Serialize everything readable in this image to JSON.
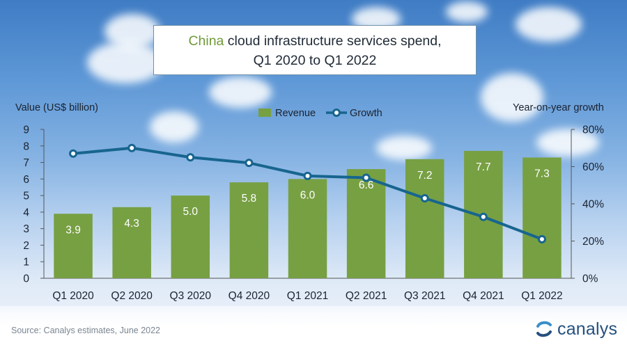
{
  "title": {
    "highlight": "China",
    "line1_rest": " cloud infrastructure services spend,",
    "line2": "Q1 2020 to Q1 2022"
  },
  "axis_titles": {
    "left": "Value (US$ billion)",
    "right": "Year-on-year growth"
  },
  "legend": {
    "revenue": "Revenue",
    "growth": "Growth"
  },
  "source": "Source: Canalys estimates, June 2022",
  "brand": "canalys",
  "colors": {
    "bar": "#77a043",
    "line": "#17658f",
    "marker_fill": "#ffffff"
  },
  "chart_data": {
    "type": "bar",
    "title": "China cloud infrastructure services spend, Q1 2020 to Q1 2022",
    "categories": [
      "Q1 2020",
      "Q2 2020",
      "Q3 2020",
      "Q4 2020",
      "Q1 2021",
      "Q2 2021",
      "Q3 2021",
      "Q4 2021",
      "Q1 2022"
    ],
    "series": [
      {
        "name": "Revenue",
        "type": "bar",
        "axis": "left",
        "values": [
          3.9,
          4.3,
          5.0,
          5.8,
          6.0,
          6.6,
          7.2,
          7.7,
          7.3
        ],
        "labels": [
          "3.9",
          "4.3",
          "5.0",
          "5.8",
          "6.0",
          "6.6",
          "7.2",
          "7.7",
          "7.3"
        ]
      },
      {
        "name": "Growth",
        "type": "line",
        "axis": "right",
        "values": [
          67,
          70,
          65,
          62,
          55,
          54,
          43,
          33,
          21
        ]
      }
    ],
    "ylabel": "Value (US$ billion)",
    "y2label": "Year-on-year growth",
    "ylim": [
      0,
      9
    ],
    "y2lim": [
      0,
      80
    ],
    "yticks": [
      "0",
      "1",
      "2",
      "3",
      "4",
      "5",
      "6",
      "7",
      "8",
      "9"
    ],
    "y2ticks": [
      "0%",
      "20%",
      "40%",
      "60%",
      "80%"
    ],
    "legend_position": "top-center"
  }
}
